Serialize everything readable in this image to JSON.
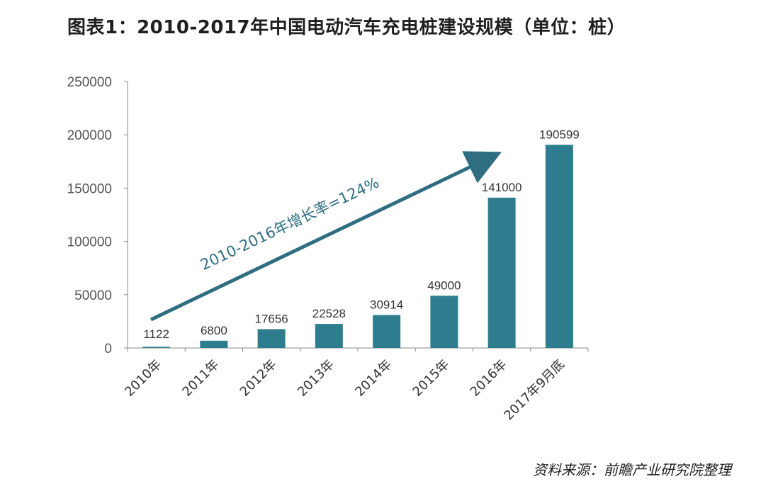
{
  "header": {
    "title": "图表1：2010-2017年中国电动汽车充电桩建设规模（单位：桩）"
  },
  "footer": {
    "source": "资料来源：前瞻产业研究院整理"
  },
  "colors": {
    "bar": "#2e7d8f",
    "arrow": "#2e6e80",
    "axis": "#888888"
  },
  "chart_data": {
    "type": "bar",
    "title": "图表1：2010-2017年中国电动汽车充电桩建设规模（单位：桩）",
    "categories": [
      "2010年",
      "2011年",
      "2012年",
      "2013年",
      "2014年",
      "2015年",
      "2016年",
      "2017年9月底"
    ],
    "values": [
      1122,
      6800,
      17656,
      22528,
      30914,
      49000,
      141000,
      190599
    ],
    "data_labels": [
      "1122",
      "6800",
      "17656",
      "22528",
      "30914",
      "49000",
      "141000",
      "190599"
    ],
    "ylim": [
      0,
      250000
    ],
    "yticks": [
      0,
      50000,
      100000,
      150000,
      200000,
      250000
    ],
    "ytick_labels": [
      "0",
      "50000",
      "100000",
      "150000",
      "200000",
      "250000"
    ],
    "grid": false,
    "annotation": "2010-2016年增长率=124%"
  }
}
